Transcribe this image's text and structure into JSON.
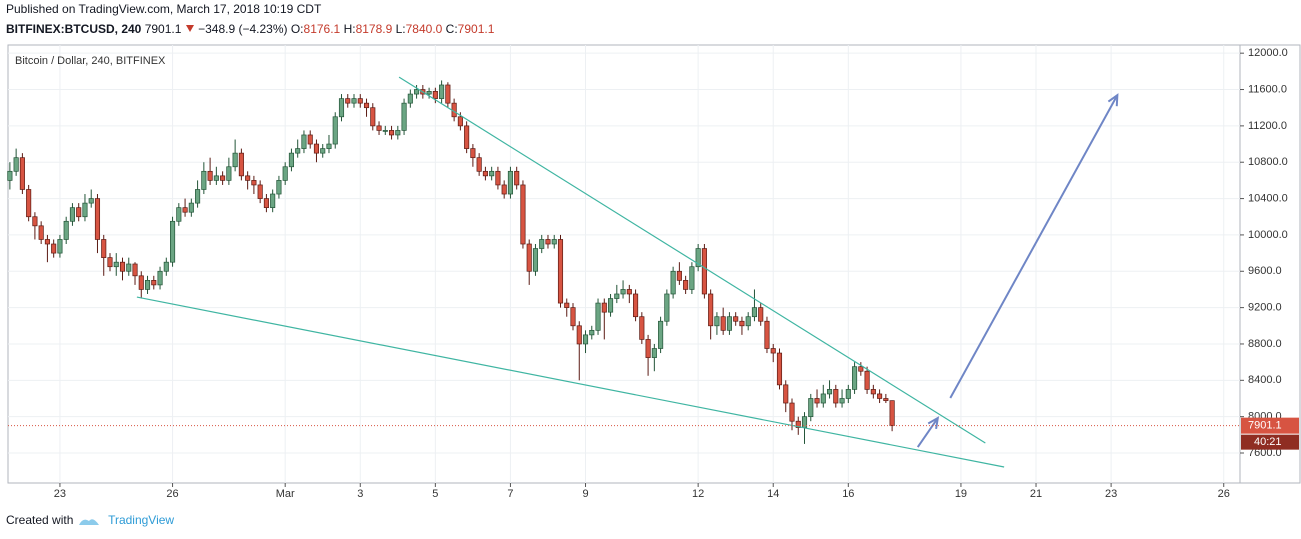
{
  "header": {
    "published": "Published on TradingView.com, March 17, 2018 10:19 CDT",
    "symbol": "BITFINEX:BTCUSD, 240",
    "change": "−348.9 (−4.23%)",
    "ohlc": [
      {
        "label": "O:",
        "value": "8176.1"
      },
      {
        "label": "H:",
        "value": "8178.9"
      },
      {
        "label": "L:",
        "value": "7840.0"
      },
      {
        "label": "C:",
        "value": "7901.1"
      }
    ]
  },
  "footer": {
    "created": "Created with",
    "brand": "TradingView"
  },
  "chart_data": {
    "type": "candlestick",
    "legend": "Bitcoin / Dollar, 240, BITFINEX",
    "last_price": 7901.1,
    "countdown": "40:21",
    "up_color": "#6ba583",
    "down_color": "#d75442",
    "grid": true,
    "xlim": [
      -0.3,
      196.6
    ],
    "ylim": [
      7270,
      12090
    ],
    "xticks": [
      {
        "value": 8,
        "label": "23"
      },
      {
        "value": 26,
        "label": "26"
      },
      {
        "value": 44,
        "label": "Mar"
      },
      {
        "value": 56,
        "label": "3"
      },
      {
        "value": 68,
        "label": "5"
      },
      {
        "value": 80,
        "label": "7"
      },
      {
        "value": 92,
        "label": "9"
      },
      {
        "value": 110,
        "label": "12"
      },
      {
        "value": 122,
        "label": "14"
      },
      {
        "value": 134,
        "label": "16"
      },
      {
        "value": 152,
        "label": "19"
      },
      {
        "value": 164,
        "label": "21"
      },
      {
        "value": 176,
        "label": "23"
      },
      {
        "value": 194,
        "label": "26"
      }
    ],
    "yticks": [
      {
        "value": 7600,
        "label": "7600.0"
      },
      {
        "value": 8000,
        "label": "8000.0"
      },
      {
        "value": 8400,
        "label": "8400.0"
      },
      {
        "value": 8800,
        "label": "8800.0"
      },
      {
        "value": 9200,
        "label": "9200.0"
      },
      {
        "value": 9600,
        "label": "9600.0"
      },
      {
        "value": 10000,
        "label": "10000.0"
      },
      {
        "value": 10400,
        "label": "10400.0"
      },
      {
        "value": 10800,
        "label": "10800.0"
      },
      {
        "value": 11200,
        "label": "11200.0"
      },
      {
        "value": 11600,
        "label": "11600.0"
      },
      {
        "value": 12000,
        "label": "12000.0"
      }
    ],
    "candles": [
      [
        10600,
        10800,
        10500,
        10700
      ],
      [
        10700,
        10950,
        10650,
        10850
      ],
      [
        10850,
        10900,
        10450,
        10500
      ],
      [
        10500,
        10550,
        10150,
        10200
      ],
      [
        10200,
        10250,
        9950,
        10100
      ],
      [
        10100,
        10150,
        9900,
        9950
      ],
      [
        9950,
        10000,
        9700,
        9900
      ],
      [
        9900,
        9950,
        9750,
        9800
      ],
      [
        9800,
        10000,
        9750,
        9950
      ],
      [
        9950,
        10200,
        9900,
        10150
      ],
      [
        10150,
        10350,
        10100,
        10300
      ],
      [
        10300,
        10350,
        10150,
        10200
      ],
      [
        10200,
        10450,
        10150,
        10350
      ],
      [
        10350,
        10500,
        10300,
        10400
      ],
      [
        10400,
        10450,
        9800,
        9950
      ],
      [
        9950,
        10000,
        9550,
        9750
      ],
      [
        9750,
        9800,
        9600,
        9650
      ],
      [
        9650,
        9800,
        9550,
        9700
      ],
      [
        9700,
        9750,
        9500,
        9600
      ],
      [
        9600,
        9750,
        9550,
        9680
      ],
      [
        9680,
        9700,
        9450,
        9550
      ],
      [
        9550,
        9600,
        9300,
        9400
      ],
      [
        9400,
        9550,
        9350,
        9500
      ],
      [
        9500,
        9550,
        9400,
        9450
      ],
      [
        9450,
        9650,
        9400,
        9600
      ],
      [
        9600,
        9750,
        9550,
        9700
      ],
      [
        9700,
        10200,
        9650,
        10150
      ],
      [
        10150,
        10350,
        10100,
        10300
      ],
      [
        10300,
        10400,
        10200,
        10250
      ],
      [
        10250,
        10400,
        10200,
        10350
      ],
      [
        10350,
        10600,
        10300,
        10500
      ],
      [
        10500,
        10800,
        10450,
        10700
      ],
      [
        10700,
        10850,
        10550,
        10600
      ],
      [
        10600,
        10750,
        10550,
        10650
      ],
      [
        10650,
        10700,
        10550,
        10600
      ],
      [
        10600,
        10850,
        10550,
        10750
      ],
      [
        10750,
        11050,
        10700,
        10900
      ],
      [
        10900,
        10950,
        10600,
        10650
      ],
      [
        10650,
        10700,
        10500,
        10600
      ],
      [
        10600,
        10650,
        10450,
        10550
      ],
      [
        10550,
        10600,
        10350,
        10400
      ],
      [
        10400,
        10450,
        10250,
        10300
      ],
      [
        10300,
        10500,
        10250,
        10450
      ],
      [
        10450,
        10650,
        10400,
        10600
      ],
      [
        10600,
        10800,
        10550,
        10750
      ],
      [
        10750,
        10950,
        10700,
        10900
      ],
      [
        10900,
        11050,
        10850,
        10950
      ],
      [
        10950,
        11150,
        10900,
        11100
      ],
      [
        11100,
        11150,
        10950,
        11000
      ],
      [
        11000,
        11050,
        10800,
        10900
      ],
      [
        10900,
        11000,
        10850,
        10950
      ],
      [
        10950,
        11100,
        10900,
        11000
      ],
      [
        11000,
        11350,
        10950,
        11300
      ],
      [
        11300,
        11550,
        11250,
        11500
      ],
      [
        11500,
        11550,
        11400,
        11450
      ],
      [
        11450,
        11550,
        11400,
        11500
      ],
      [
        11500,
        11550,
        11400,
        11450
      ],
      [
        11450,
        11500,
        11300,
        11400
      ],
      [
        11400,
        11450,
        11150,
        11200
      ],
      [
        11200,
        11250,
        11100,
        11150
      ],
      [
        11150,
        11200,
        11100,
        11150
      ],
      [
        11150,
        11200,
        11050,
        11100
      ],
      [
        11100,
        11200,
        11050,
        11150
      ],
      [
        11150,
        11500,
        11100,
        11450
      ],
      [
        11450,
        11600,
        11400,
        11550
      ],
      [
        11550,
        11650,
        11500,
        11600
      ],
      [
        11600,
        11650,
        11500,
        11550
      ],
      [
        11550,
        11620,
        11500,
        11580
      ],
      [
        11580,
        11620,
        11450,
        11500
      ],
      [
        11500,
        11700,
        11450,
        11650
      ],
      [
        11650,
        11680,
        11400,
        11450
      ],
      [
        11450,
        11500,
        11250,
        11300
      ],
      [
        11300,
        11350,
        11150,
        11200
      ],
      [
        11200,
        11250,
        10900,
        10950
      ],
      [
        10950,
        11000,
        10750,
        10850
      ],
      [
        10850,
        10900,
        10650,
        10700
      ],
      [
        10700,
        10750,
        10600,
        10650
      ],
      [
        10650,
        10750,
        10600,
        10700
      ],
      [
        10700,
        10750,
        10500,
        10550
      ],
      [
        10550,
        10600,
        10400,
        10450
      ],
      [
        10450,
        10750,
        10400,
        10700
      ],
      [
        10700,
        10750,
        10500,
        10550
      ],
      [
        10550,
        10600,
        9850,
        9900
      ],
      [
        9900,
        9950,
        9450,
        9600
      ],
      [
        9600,
        9900,
        9550,
        9850
      ],
      [
        9850,
        10000,
        9800,
        9950
      ],
      [
        9950,
        10000,
        9850,
        9900
      ],
      [
        9900,
        10000,
        9850,
        9950
      ],
      [
        9950,
        10000,
        9200,
        9250
      ],
      [
        9250,
        9300,
        9100,
        9200
      ],
      [
        9200,
        9250,
        8950,
        9000
      ],
      [
        9000,
        9050,
        8400,
        8800
      ],
      [
        8800,
        8950,
        8700,
        8900
      ],
      [
        8900,
        9000,
        8850,
        8950
      ],
      [
        8950,
        9300,
        8900,
        9250
      ],
      [
        9250,
        9300,
        8850,
        9150
      ],
      [
        9150,
        9350,
        9100,
        9300
      ],
      [
        9300,
        9450,
        9250,
        9350
      ],
      [
        9350,
        9500,
        9300,
        9400
      ],
      [
        9400,
        9450,
        9250,
        9350
      ],
      [
        9350,
        9400,
        9050,
        9100
      ],
      [
        9100,
        9150,
        8800,
        8850
      ],
      [
        8850,
        8900,
        8450,
        8650
      ],
      [
        8650,
        8800,
        8500,
        8750
      ],
      [
        8750,
        9100,
        8700,
        9050
      ],
      [
        9050,
        9400,
        9000,
        9350
      ],
      [
        9350,
        9650,
        9300,
        9600
      ],
      [
        9600,
        9700,
        9450,
        9500
      ],
      [
        9500,
        9550,
        9350,
        9400
      ],
      [
        9400,
        9700,
        9350,
        9650
      ],
      [
        9650,
        9900,
        9600,
        9850
      ],
      [
        9850,
        9900,
        9300,
        9350
      ],
      [
        9350,
        9400,
        8850,
        9000
      ],
      [
        9000,
        9150,
        8900,
        9100
      ],
      [
        9100,
        9200,
        8900,
        8950
      ],
      [
        8950,
        9150,
        8900,
        9100
      ],
      [
        9100,
        9150,
        9000,
        9050
      ],
      [
        9050,
        9100,
        8900,
        9000
      ],
      [
        9000,
        9150,
        8950,
        9100
      ],
      [
        9100,
        9400,
        9050,
        9200
      ],
      [
        9200,
        9250,
        9000,
        9050
      ],
      [
        9050,
        9100,
        8700,
        8750
      ],
      [
        8750,
        8800,
        8600,
        8700
      ],
      [
        8700,
        8750,
        8300,
        8350
      ],
      [
        8350,
        8400,
        8050,
        8150
      ],
      [
        8150,
        8200,
        7850,
        7950
      ],
      [
        7950,
        8000,
        7800,
        7880
      ],
      [
        7880,
        8050,
        7700,
        8000
      ],
      [
        8000,
        8250,
        7950,
        8200
      ],
      [
        8200,
        8300,
        8100,
        8150
      ],
      [
        8150,
        8350,
        8100,
        8250
      ],
      [
        8250,
        8400,
        8200,
        8300
      ],
      [
        8300,
        8350,
        8100,
        8150
      ],
      [
        8150,
        8300,
        8100,
        8200
      ],
      [
        8200,
        8350,
        8150,
        8300
      ],
      [
        8300,
        8600,
        8250,
        8550
      ],
      [
        8550,
        8600,
        8450,
        8500
      ],
      [
        8500,
        8550,
        8250,
        8300
      ],
      [
        8300,
        8350,
        8200,
        8250
      ],
      [
        8250,
        8300,
        8150,
        8200
      ],
      [
        8200,
        8250,
        8150,
        8176.1
      ],
      [
        8176.1,
        8178.9,
        7840,
        7901.1
      ]
    ],
    "trendlines": {
      "color": "#3fb5a2",
      "lines": [
        [
          [
            62.2,
            11736
          ],
          [
            155.9,
            7710
          ]
        ],
        [
          [
            20.3,
            9316
          ],
          [
            158.9,
            7446
          ]
        ]
      ]
    },
    "arrows": {
      "color": "#6f86c6",
      "lines": [
        [
          [
            145.1,
            7666
          ],
          [
            148.3,
            7985
          ]
        ],
        [
          [
            150.3,
            8205
          ],
          [
            177.0,
            11538
          ]
        ]
      ]
    }
  }
}
